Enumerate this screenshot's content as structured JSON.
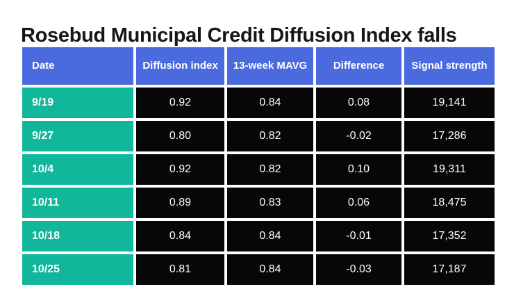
{
  "page_title": "Rosebud Municipal Credit Diffusion Index falls",
  "colors": {
    "header_bg": "#4a6ade",
    "date_bg": "#10b79a",
    "cell_bg": "#070707",
    "cell_text": "#ffffff",
    "title_text": "#161616",
    "background": "#ffffff"
  },
  "table": {
    "columns": [
      "Date",
      "Diffusion index",
      "13-week MAVG",
      "Difference",
      "Signal strength"
    ],
    "rows": [
      {
        "date": "9/19",
        "diffusion_index": "0.92",
        "mavg_13_week": "0.84",
        "difference": "0.08",
        "signal_strength": "19,141"
      },
      {
        "date": "9/27",
        "diffusion_index": "0.80",
        "mavg_13_week": "0.82",
        "difference": "-0.02",
        "signal_strength": "17,286"
      },
      {
        "date": "10/4",
        "diffusion_index": "0.92",
        "mavg_13_week": "0.82",
        "difference": "0.10",
        "signal_strength": "19,311"
      },
      {
        "date": "10/11",
        "diffusion_index": "0.89",
        "mavg_13_week": "0.83",
        "difference": "0.06",
        "signal_strength": "18,475"
      },
      {
        "date": "10/18",
        "diffusion_index": "0.84",
        "mavg_13_week": "0.84",
        "difference": "-0.01",
        "signal_strength": "17,352"
      },
      {
        "date": "10/25",
        "diffusion_index": "0.81",
        "mavg_13_week": "0.84",
        "difference": "-0.03",
        "signal_strength": "17,187"
      }
    ]
  },
  "chart_data": {
    "type": "table",
    "title": "Rosebud Municipal Credit Diffusion Index falls",
    "columns": [
      "Date",
      "Diffusion index",
      "13-week MAVG",
      "Difference",
      "Signal strength"
    ],
    "rows": [
      [
        "9/19",
        0.92,
        0.84,
        0.08,
        19141
      ],
      [
        "9/27",
        0.8,
        0.82,
        -0.02,
        17286
      ],
      [
        "10/4",
        0.92,
        0.82,
        0.1,
        19311
      ],
      [
        "10/11",
        0.89,
        0.83,
        0.06,
        18475
      ],
      [
        "10/18",
        0.84,
        0.84,
        -0.01,
        17352
      ],
      [
        "10/25",
        0.81,
        0.84,
        -0.03,
        17187
      ]
    ]
  }
}
